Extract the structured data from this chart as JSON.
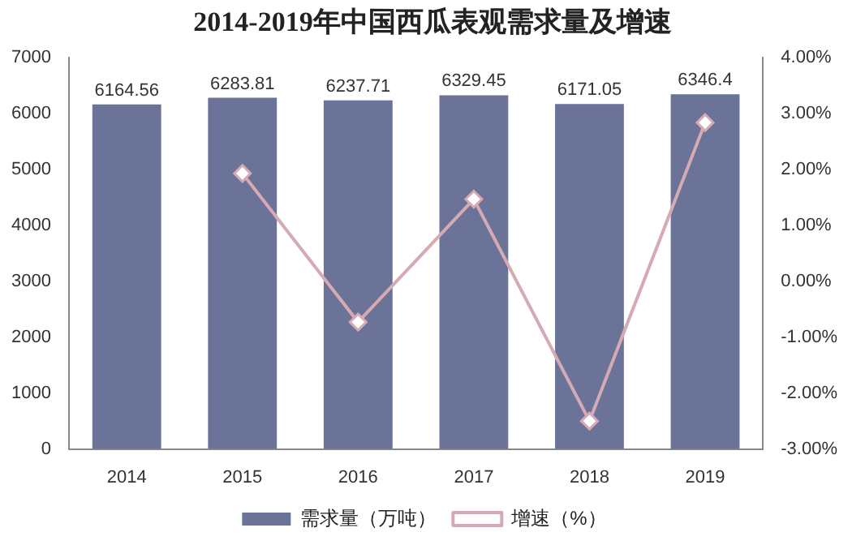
{
  "chart_data": {
    "type": "bar",
    "title": "2014-2019年中国西瓜表观需求量及增速",
    "categories": [
      "2014",
      "2015",
      "2016",
      "2017",
      "2018",
      "2019"
    ],
    "series": [
      {
        "name": "需求量（万吨）",
        "color": "#6b7398",
        "values": [
          6164.56,
          6283.81,
          6237.71,
          6329.45,
          6171.05,
          6346.4
        ],
        "value_labels": [
          "6164.56",
          "6283.81",
          "6237.71",
          "6329.45",
          "6171.05",
          "6346.4"
        ]
      },
      {
        "name": "增速（%）",
        "type": "line",
        "axis": "y2",
        "color": "#d6aab3",
        "marker": "diamond",
        "values": [
          null,
          1.93,
          -0.73,
          1.47,
          -2.5,
          2.84
        ]
      }
    ],
    "ylim": [
      0,
      7000
    ],
    "yticks": [
      0,
      1000,
      2000,
      3000,
      4000,
      5000,
      6000,
      7000
    ],
    "y2lim": [
      -3,
      4
    ],
    "y2ticks": [
      {
        "value": -3,
        "label": "-3.00%"
      },
      {
        "value": -2,
        "label": "-2.00%"
      },
      {
        "value": -1,
        "label": "-1.00%"
      },
      {
        "value": 0,
        "label": "0.00%"
      },
      {
        "value": 1,
        "label": "1.00%"
      },
      {
        "value": 2,
        "label": "2.00%"
      },
      {
        "value": 3,
        "label": "3.00%"
      },
      {
        "value": 4,
        "label": "4.00%"
      }
    ],
    "grid": false,
    "legend": "bottom"
  }
}
